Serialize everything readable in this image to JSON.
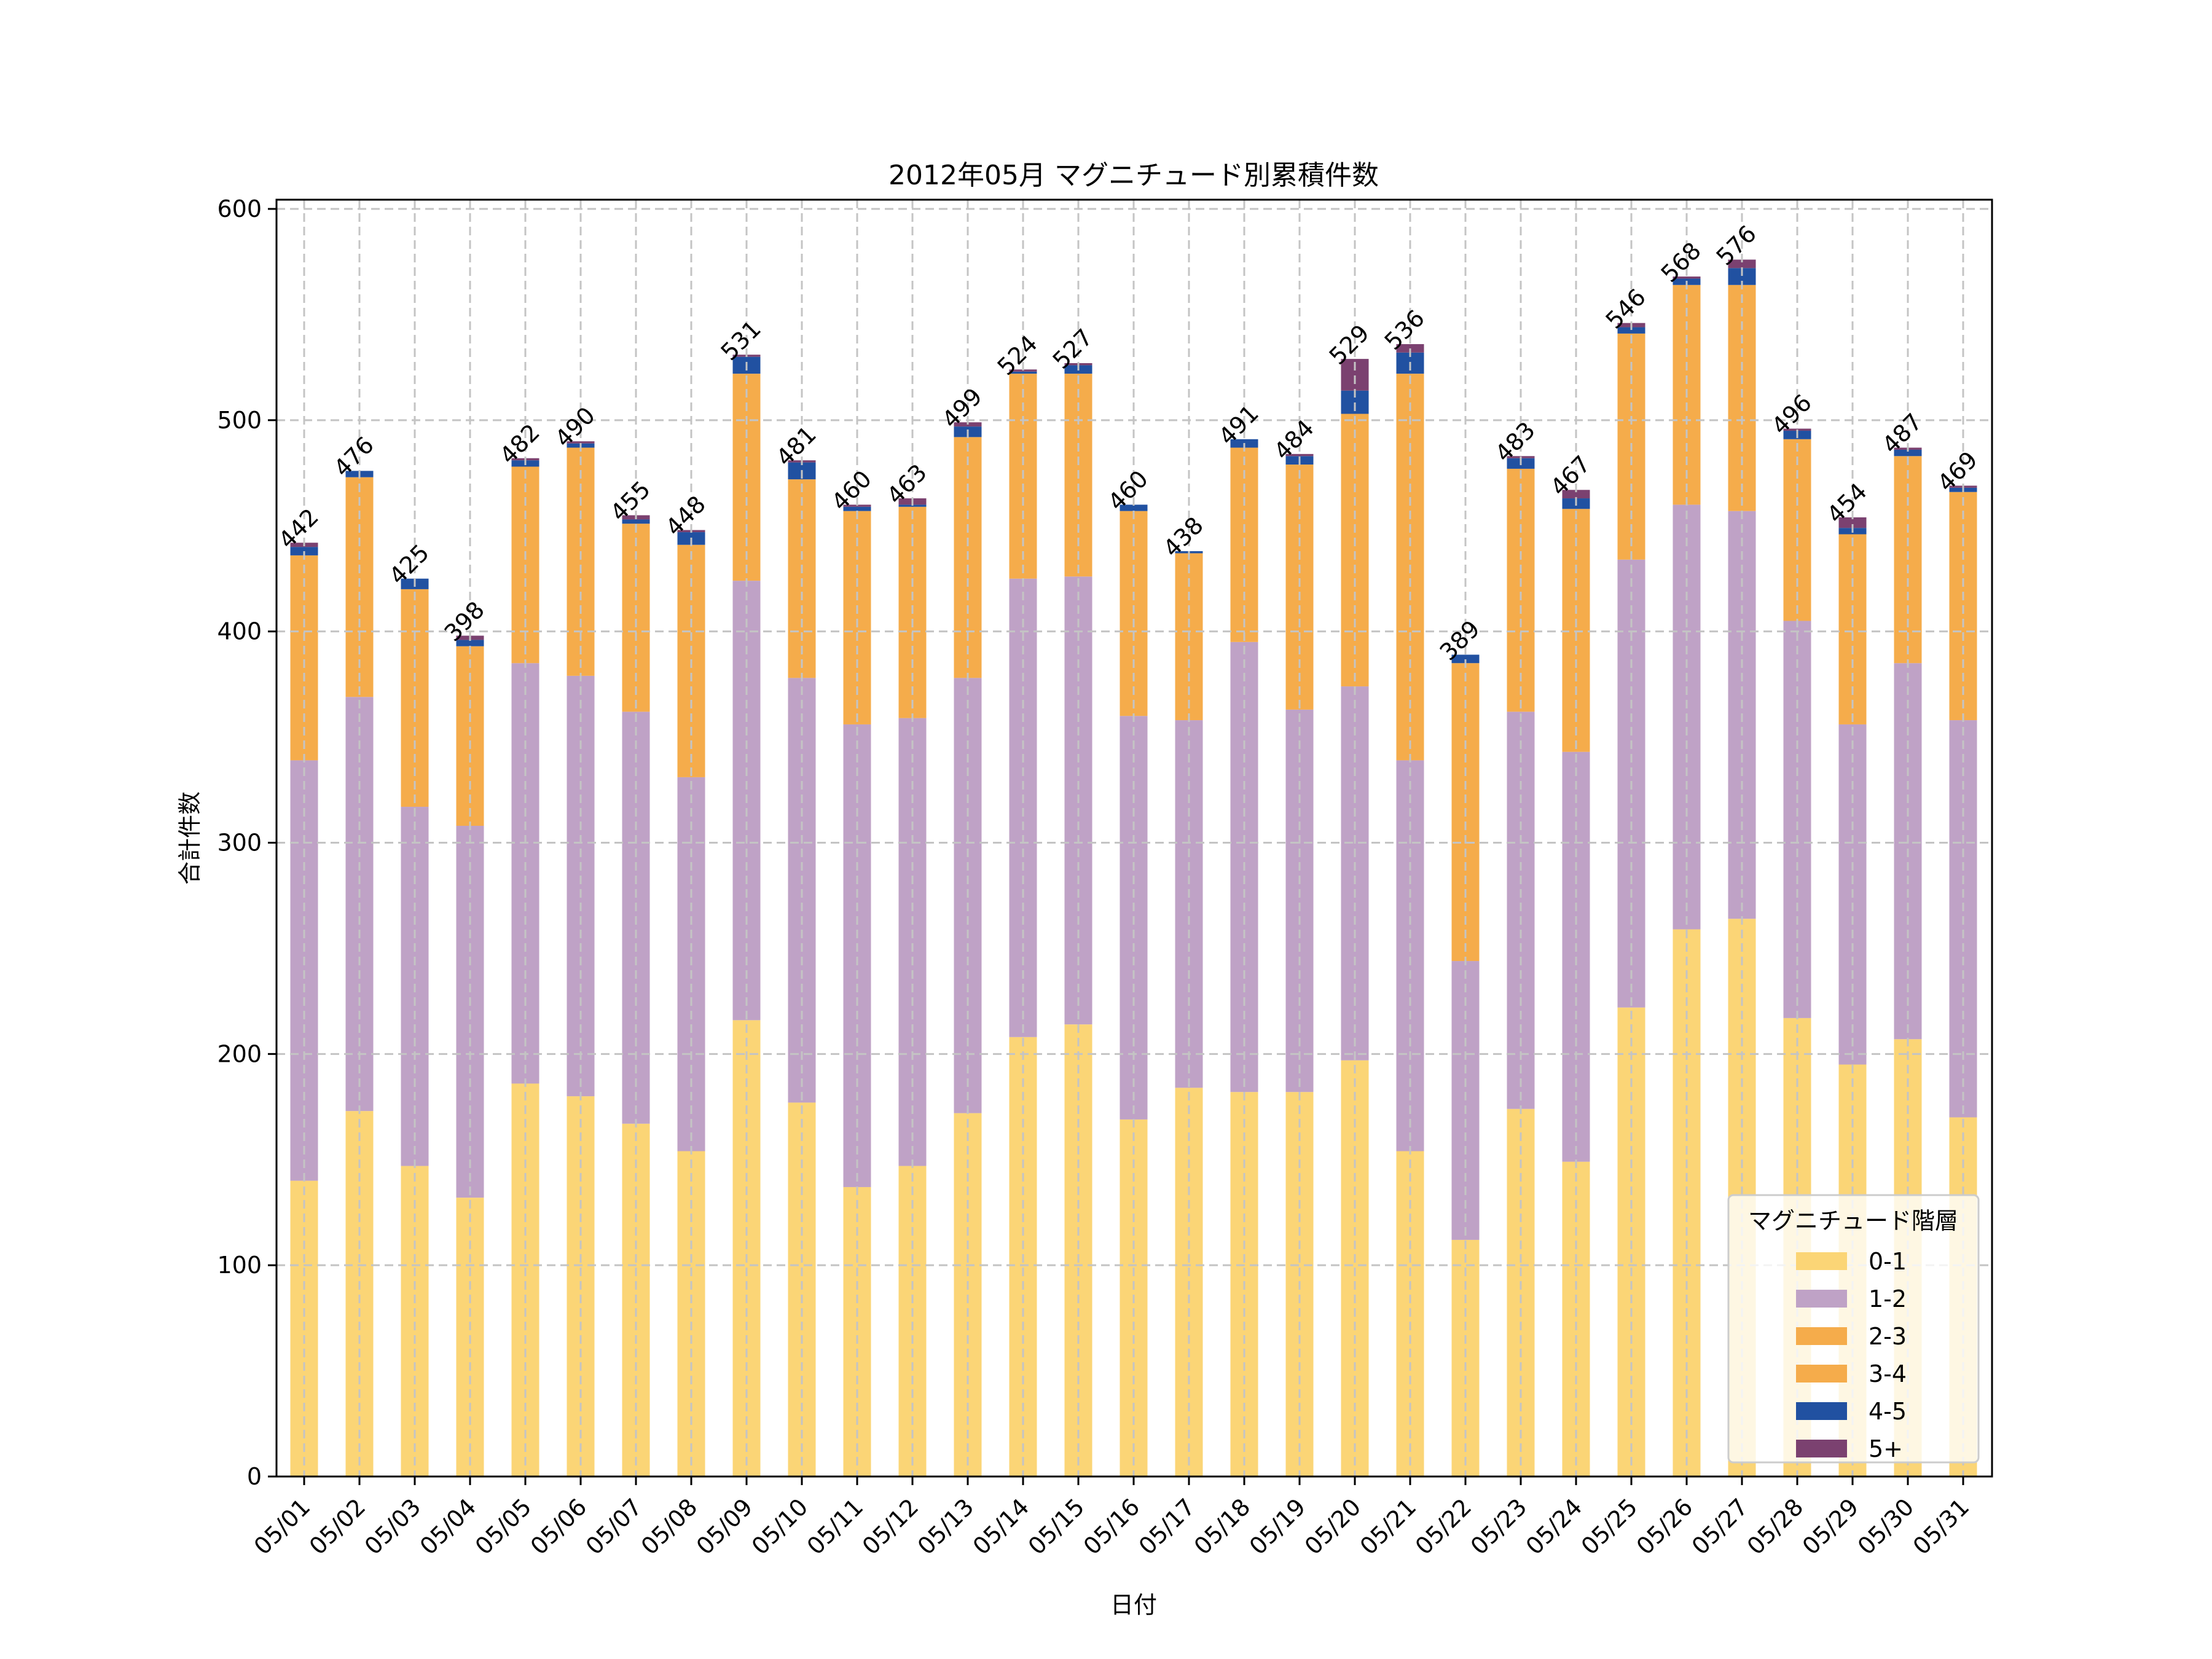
{
  "chart_data": {
    "type": "bar",
    "stacked": true,
    "title": "2012年05月 マグニチュード別累積件数",
    "xlabel": "日付",
    "ylabel": "合計件数",
    "ylim": [
      0,
      605
    ],
    "yticks": [
      0,
      100,
      200,
      300,
      400,
      500,
      600
    ],
    "grid": true,
    "legend": {
      "title": "マグニチュード階層",
      "placement": "bottom-right"
    },
    "categories": [
      "05/01",
      "05/02",
      "05/03",
      "05/04",
      "05/05",
      "05/06",
      "05/07",
      "05/08",
      "05/09",
      "05/10",
      "05/11",
      "05/12",
      "05/13",
      "05/14",
      "05/15",
      "05/16",
      "05/17",
      "05/18",
      "05/19",
      "05/20",
      "05/21",
      "05/22",
      "05/23",
      "05/24",
      "05/25",
      "05/26",
      "05/27",
      "05/28",
      "05/29",
      "05/30",
      "05/31"
    ],
    "totals": [
      442,
      476,
      425,
      398,
      482,
      490,
      455,
      448,
      531,
      481,
      460,
      463,
      499,
      524,
      527,
      460,
      438,
      491,
      484,
      529,
      536,
      389,
      483,
      467,
      546,
      568,
      576,
      496,
      454,
      487,
      469
    ],
    "series": [
      {
        "name": "0-1",
        "color": "#FBD576",
        "values": [
          140,
          173,
          147,
          132,
          186,
          180,
          167,
          154,
          216,
          177,
          137,
          147,
          172,
          208,
          214,
          169,
          184,
          182,
          182,
          197,
          154,
          112,
          174,
          149,
          222,
          259,
          264,
          217,
          195,
          207,
          170
        ]
      },
      {
        "name": "1-2",
        "color": "#BFA2C6",
        "values": [
          199,
          196,
          170,
          176,
          199,
          199,
          195,
          177,
          208,
          201,
          219,
          212,
          206,
          217,
          212,
          191,
          174,
          213,
          181,
          177,
          185,
          132,
          188,
          194,
          212,
          201,
          193,
          188,
          161,
          178,
          188
        ]
      },
      {
        "name": "2-3",
        "color": "#F5AC4B",
        "values": [
          97,
          104,
          103,
          85,
          93,
          108,
          89,
          110,
          98,
          94,
          101,
          100,
          114,
          97,
          96,
          97,
          79,
          92,
          116,
          129,
          183,
          141,
          115,
          115,
          107,
          104,
          107,
          86,
          90,
          98,
          108
        ]
      },
      {
        "name": "3-4",
        "color": "#F5AC4B",
        "values": [
          0,
          0,
          0,
          0,
          0,
          0,
          0,
          0,
          0,
          0,
          0,
          0,
          0,
          0,
          0,
          0,
          0,
          0,
          0,
          0,
          0,
          0,
          0,
          0,
          0,
          0,
          0,
          0,
          0,
          0,
          0
        ]
      },
      {
        "name": "4-5",
        "color": "#2151A1",
        "values": [
          4,
          3,
          5,
          3,
          3,
          2,
          2,
          6,
          8,
          8,
          2,
          1,
          5,
          1,
          4,
          3,
          1,
          4,
          4,
          11,
          10,
          4,
          5,
          5,
          3,
          3,
          8,
          4,
          3,
          3,
          2
        ]
      },
      {
        "name": "5+",
        "color": "#7B4170",
        "values": [
          2,
          0,
          0,
          2,
          1,
          1,
          2,
          1,
          1,
          1,
          1,
          3,
          2,
          1,
          1,
          0,
          0,
          0,
          1,
          15,
          4,
          0,
          1,
          4,
          2,
          1,
          4,
          1,
          5,
          1,
          1
        ]
      }
    ]
  }
}
